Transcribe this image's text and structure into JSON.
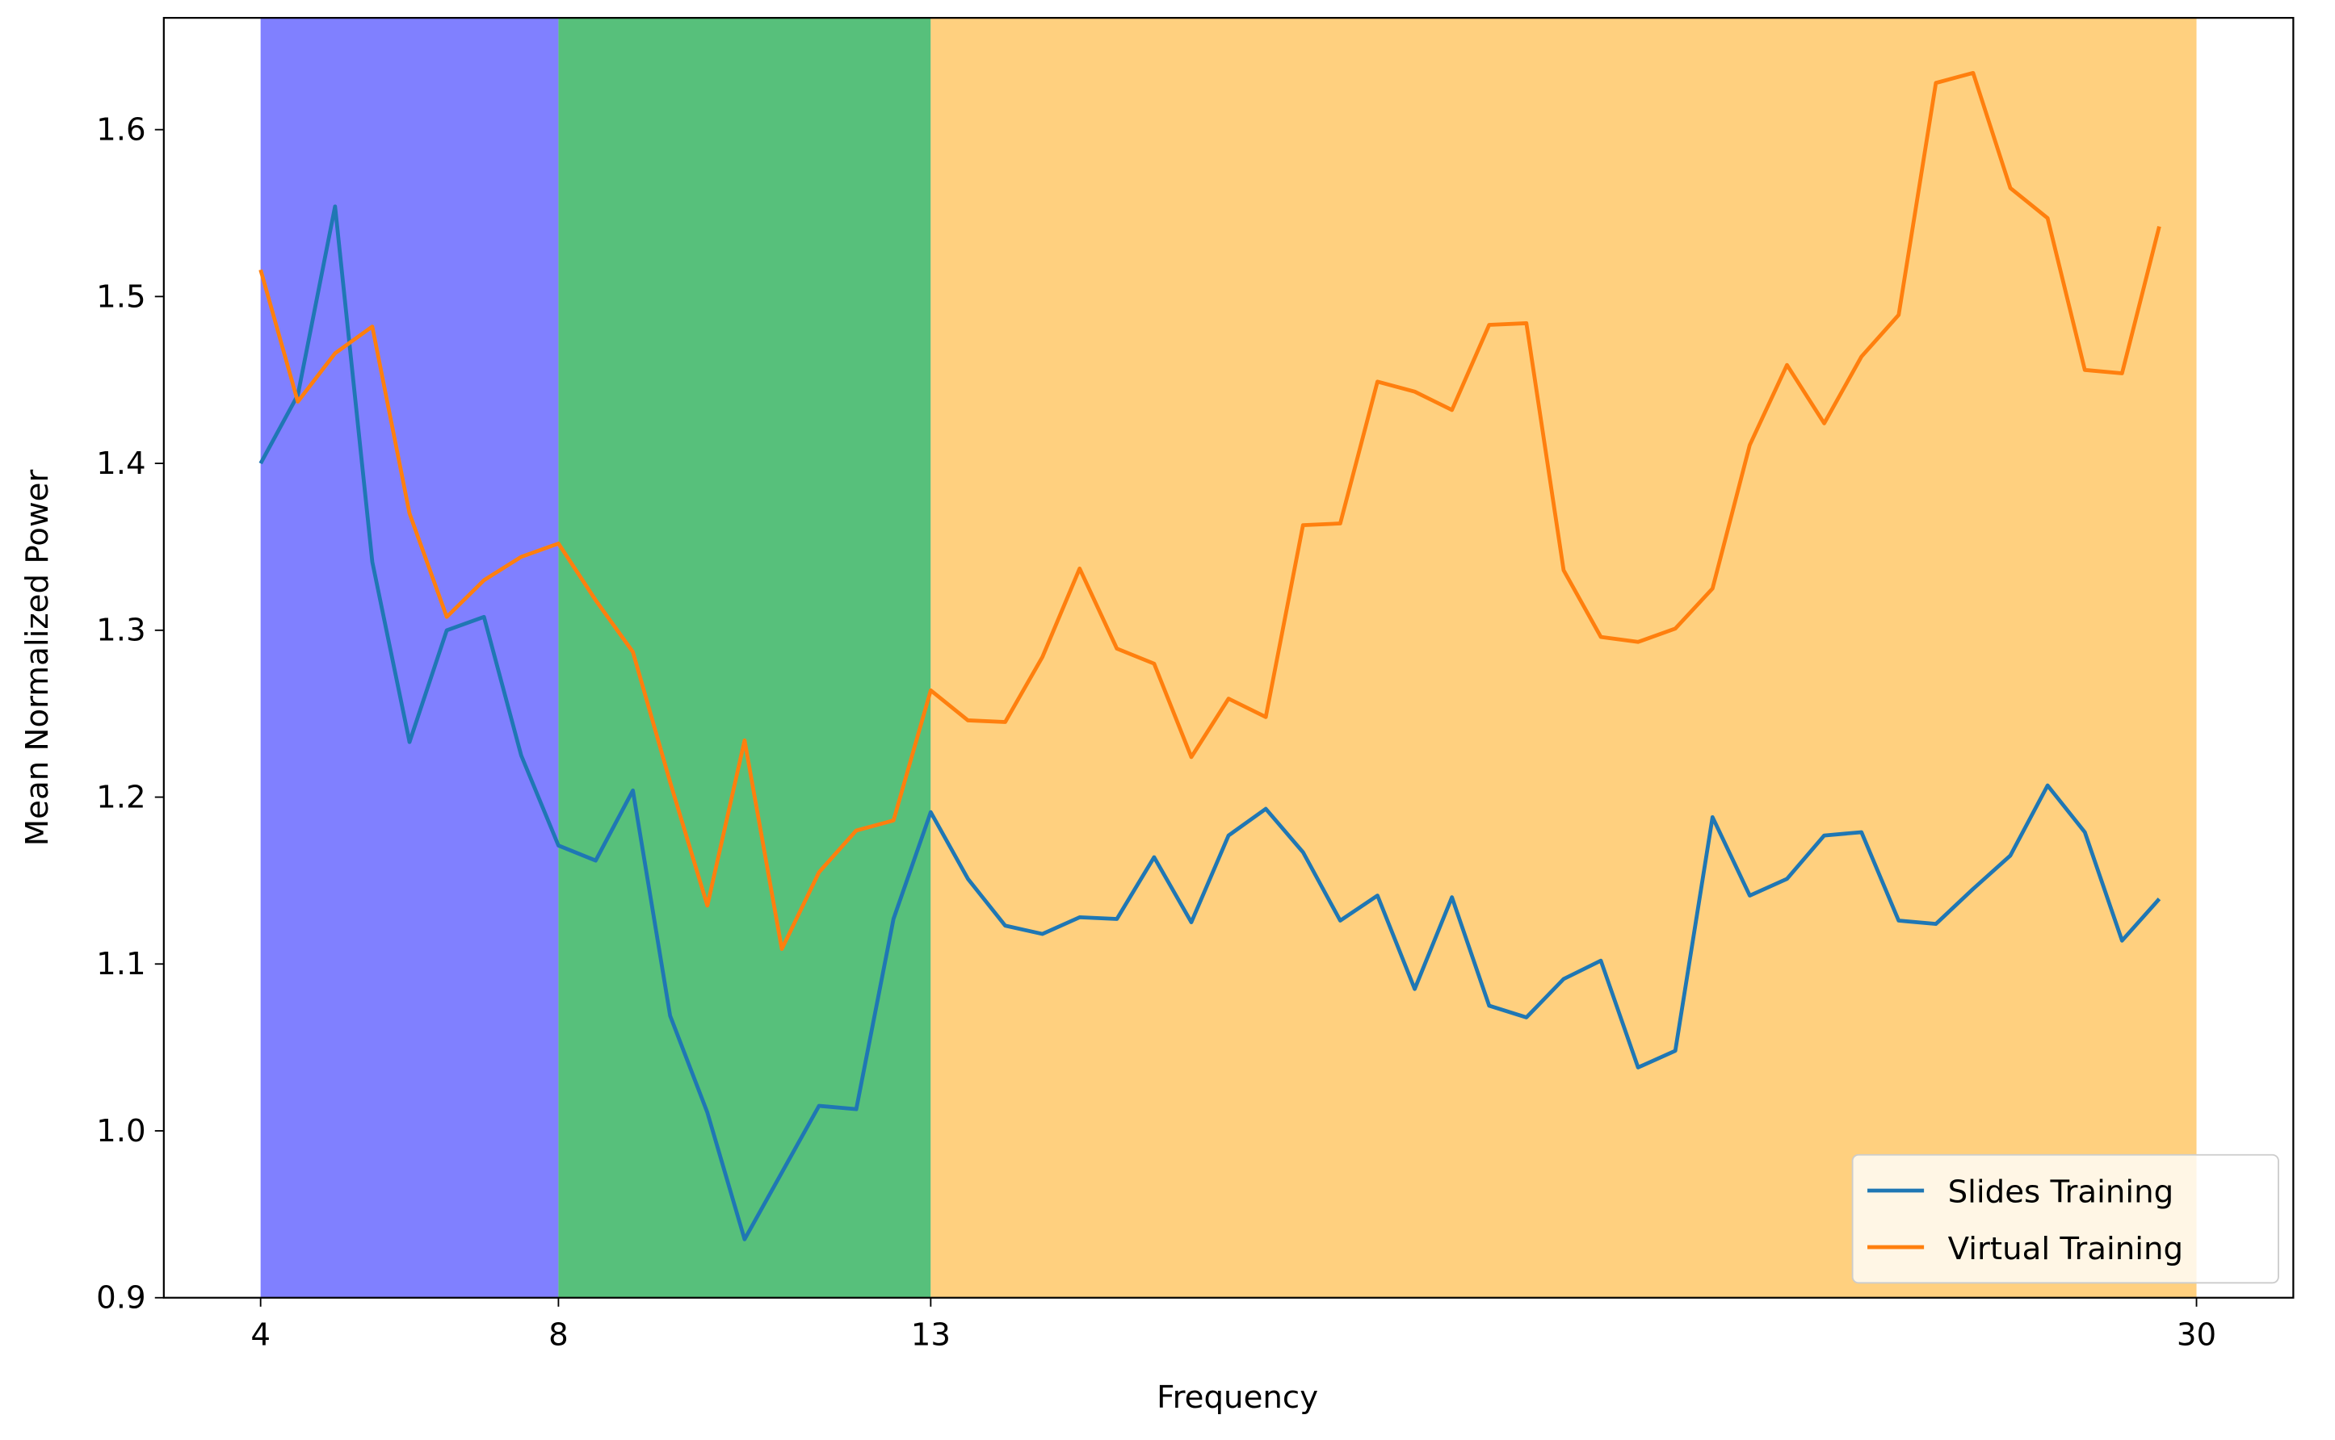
{
  "chart_data": {
    "type": "line",
    "x_label": "Frequency",
    "y_label": "Mean Normalized Power",
    "x": [
      4,
      4.5,
      5,
      5.5,
      6,
      6.5,
      7,
      7.5,
      8,
      8.5,
      9,
      9.5,
      10,
      10.5,
      11,
      11.5,
      12,
      12.5,
      13,
      13.5,
      14,
      14.5,
      15,
      15.5,
      16,
      16.5,
      17,
      17.5,
      18,
      18.5,
      19,
      19.5,
      20,
      20.5,
      21,
      21.5,
      22,
      22.5,
      23,
      23.5,
      24,
      24.5,
      25,
      25.5,
      26,
      26.5,
      27,
      27.5,
      28,
      28.5,
      29,
      29.5
    ],
    "series": [
      {
        "name": "Slides Training",
        "color": "#1f77b4",
        "values": [
          1.4,
          1.441,
          1.554,
          1.341,
          1.233,
          1.3,
          1.308,
          1.225,
          1.171,
          1.162,
          1.204,
          1.069,
          1.011,
          0.935,
          0.975,
          1.015,
          1.013,
          1.127,
          1.191,
          1.151,
          1.123,
          1.118,
          1.128,
          1.127,
          1.164,
          1.125,
          1.177,
          1.193,
          1.167,
          1.126,
          1.141,
          1.085,
          1.14,
          1.075,
          1.068,
          1.091,
          1.102,
          1.038,
          1.048,
          1.188,
          1.141,
          1.151,
          1.177,
          1.179,
          1.126,
          1.124,
          1.145,
          1.165,
          1.207,
          1.179,
          1.114,
          1.139
        ]
      },
      {
        "name": "Virtual Training",
        "color": "#ff7f0e",
        "values": [
          1.516,
          1.437,
          1.466,
          1.482,
          1.37,
          1.308,
          1.33,
          1.344,
          1.352,
          1.318,
          1.287,
          1.209,
          1.135,
          1.234,
          1.109,
          1.155,
          1.18,
          1.186,
          1.264,
          1.246,
          1.245,
          1.284,
          1.337,
          1.289,
          1.28,
          1.224,
          1.259,
          1.248,
          1.363,
          1.364,
          1.449,
          1.443,
          1.432,
          1.483,
          1.484,
          1.336,
          1.296,
          1.293,
          1.301,
          1.325,
          1.411,
          1.459,
          1.424,
          1.464,
          1.489,
          1.628,
          1.634,
          1.565,
          1.547,
          1.456,
          1.454,
          1.542
        ]
      }
    ],
    "bands": [
      {
        "start": 4,
        "end": 8,
        "color": "#8080ff"
      },
      {
        "start": 8,
        "end": 13,
        "color": "#57c07b"
      },
      {
        "start": 13,
        "end": 30,
        "color": "#ffd07f"
      }
    ],
    "xlim": [
      2.7,
      31.3
    ],
    "ylim": [
      0.9,
      1.667
    ],
    "xticks": [
      4,
      8,
      13,
      30
    ],
    "yticks": [
      0.9,
      {
        "value": 1,
        "label": "1.0"
      },
      1.1,
      1.2,
      1.3,
      1.4,
      1.5,
      1.6
    ],
    "legend": "lower right"
  }
}
